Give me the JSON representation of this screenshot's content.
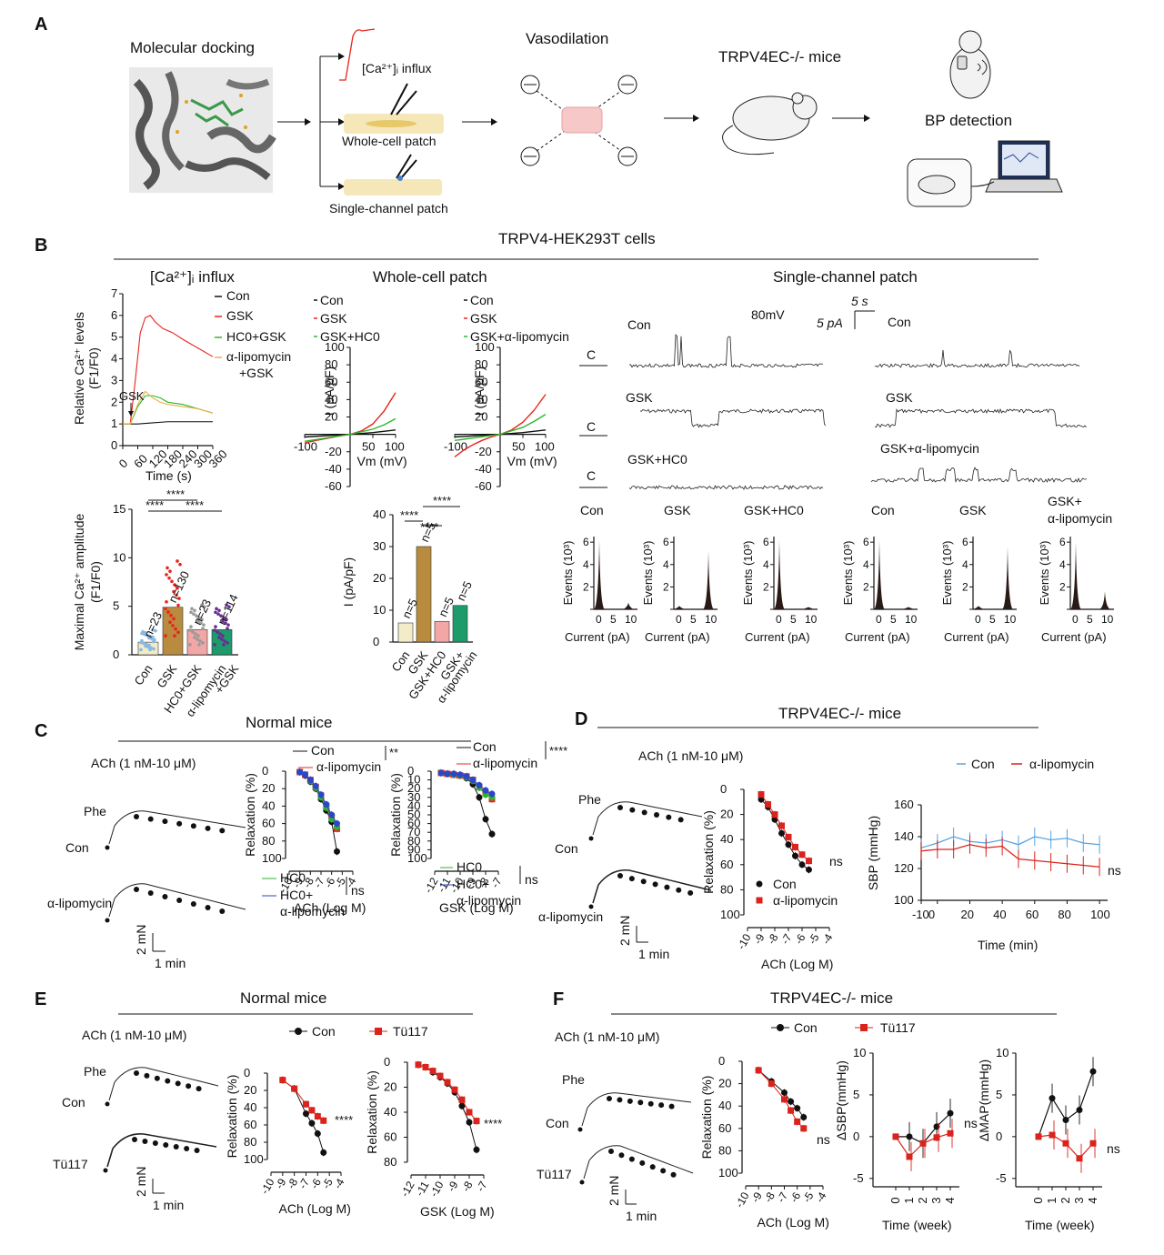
{
  "colors": {
    "con": "#111111",
    "gsk": "#e8241c",
    "hc0": "#2db62d",
    "alipo": "#e8b34a",
    "blue": "#2947c8",
    "red": "#d9231c",
    "lightblue": "#5aa3e0",
    "bar_con": "#f3ecc9",
    "bar_gsk": "#b98b3f",
    "bar_hc0": "#f3a6a6",
    "bar_alipo": "#1e9b6b"
  },
  "panelA": {
    "letter": "A",
    "docking": "Molecular docking",
    "ca_influx": "[Ca²⁺]ᵢ influx",
    "whole_cell": "Whole-cell patch",
    "single_channel": "Single-channel patch",
    "vasodilation": "Vasodilation",
    "ko_mice": "TRPV4EC-/- mice",
    "bp": "BP detection"
  },
  "panelB": {
    "letter": "B",
    "header": "TRPV4-HEK293T cells",
    "ca_title": "[Ca²⁺]ᵢ  influx",
    "wc_title": "Whole-cell patch",
    "sc_title": "Single-channel patch",
    "sc_voltage": "80mV",
    "sc_scale_t": "5 s",
    "sc_scale_i": "5 pA",
    "trace_labels_left": [
      "Con",
      "GSK",
      "GSK+HC0"
    ],
    "trace_labels_right": [
      "Con",
      "GSK",
      "GSK+α-lipomycin"
    ],
    "closed": "C",
    "hist_titles": [
      "Con",
      "GSK",
      "GSK+HC0",
      "Con",
      "GSK",
      "GSK+ α-lipomycin"
    ],
    "hist_ylabel": "Events (10³)",
    "hist_xlabel": "Current (pA)",
    "sig": "****"
  },
  "panelC": {
    "letter": "C",
    "header": "Normal mice",
    "ach": "ACh (1 nM-10 μM)",
    "phe": "Phe",
    "con": "Con",
    "alipo": "α-lipomycin",
    "scale_v": "2 mN",
    "scale_h": "1 min",
    "sig1": "**",
    "sig2": "****",
    "ns": "ns"
  },
  "panelD": {
    "letter": "D",
    "header": "TRPV4EC-/- mice",
    "ach": "ACh (1 nM-10 μM)",
    "phe": "Phe",
    "con": "Con",
    "alipo": "α-lipomycin",
    "scale_v": "2 mN",
    "scale_h": "1 min",
    "ns": "ns"
  },
  "panelE": {
    "letter": "E",
    "header": "Normal mice",
    "ach": "ACh (1 nM-10 μM)",
    "phe": "Phe",
    "con": "Con",
    "tu": "Tü117",
    "scale_v": "2 mN",
    "scale_h": "1 min",
    "sig": "****"
  },
  "panelF": {
    "letter": "F",
    "header": "TRPV4EC-/- mice",
    "ach": "ACh (1 nM-10 μM)",
    "phe": "Phe",
    "con": "Con",
    "tu": "Tü117",
    "scale_v": "2 mN",
    "scale_h": "1 min",
    "ns": "ns"
  },
  "chart_data": [
    {
      "id": "ca_influx",
      "type": "line",
      "xlabel": "Time (s)",
      "ylabel": "Relative Ca²⁺ levels (F1/F0)",
      "xlim": [
        0,
        360
      ],
      "ylim": [
        0,
        7
      ],
      "xticks": [
        0,
        60,
        120,
        180,
        240,
        300,
        360
      ],
      "yticks": [
        0,
        1,
        2,
        3,
        4,
        5,
        6,
        7
      ],
      "annotation": "GSK",
      "series": [
        {
          "name": "Con",
          "x": [
            0,
            30,
            60,
            120,
            180,
            240,
            300,
            360
          ],
          "y": [
            1,
            1,
            1,
            1.05,
            1.1,
            1.1,
            1.1,
            1.1
          ]
        },
        {
          "name": "GSK",
          "x": [
            0,
            30,
            50,
            70,
            90,
            110,
            130,
            160,
            200,
            240,
            300,
            360
          ],
          "y": [
            1,
            1,
            3,
            5.2,
            5.9,
            6.0,
            5.7,
            5.4,
            5.2,
            4.9,
            4.5,
            4.1
          ]
        },
        {
          "name": "HC0+GSK",
          "x": [
            0,
            30,
            60,
            90,
            120,
            150,
            180,
            240,
            300,
            360
          ],
          "y": [
            1,
            1,
            1.8,
            2.3,
            2.3,
            2.2,
            2.0,
            1.9,
            1.7,
            1.5
          ]
        },
        {
          "name": "α-lipomycin +GSK",
          "x": [
            0,
            30,
            60,
            90,
            120,
            150,
            180,
            240,
            300,
            360
          ],
          "y": [
            1,
            1,
            1.9,
            2.5,
            2.2,
            2.0,
            1.9,
            1.8,
            1.7,
            1.5
          ]
        }
      ]
    },
    {
      "id": "ca_max",
      "type": "bar",
      "ylabel": "Maximal Ca²⁺ amplitude (F1/F0)",
      "ylim": [
        0,
        15
      ],
      "yticks": [
        0,
        5,
        10,
        15
      ],
      "categories": [
        "Con",
        "GSK",
        "HC0+GSK",
        "α-lipomycin +GSK"
      ],
      "values": [
        1.3,
        4.9,
        2.6,
        2.6
      ],
      "n": [
        "n=23",
        "n=130",
        "n=23",
        "n=114"
      ],
      "significance": [
        "****",
        "****",
        "****"
      ]
    },
    {
      "id": "iv_hc0",
      "type": "line",
      "xlabel": "Vm (mV)",
      "ylabel": "I (pA/pF)",
      "xlim": [
        -100,
        100
      ],
      "ylim": [
        -60,
        100
      ],
      "xticks": [
        -100,
        50,
        100
      ],
      "yticks": [
        -60,
        -40,
        -20,
        20,
        40,
        60,
        80,
        100
      ],
      "series": [
        {
          "name": "Con",
          "x": [
            -100,
            -50,
            0,
            50,
            100
          ],
          "y": [
            -3,
            -1.5,
            0,
            2,
            5
          ]
        },
        {
          "name": "GSK",
          "x": [
            -100,
            -75,
            -50,
            -25,
            0,
            25,
            50,
            75,
            100
          ],
          "y": [
            -10,
            -7,
            -4.5,
            -2,
            0,
            4,
            12,
            27,
            48
          ]
        },
        {
          "name": "GSK+HC0",
          "x": [
            -100,
            -50,
            0,
            50,
            75,
            100
          ],
          "y": [
            -8,
            -4,
            0,
            6,
            11,
            18
          ]
        }
      ]
    },
    {
      "id": "iv_alipo",
      "type": "line",
      "xlabel": "Vm (mV)",
      "ylabel": "I (pA/pF)",
      "xlim": [
        -100,
        100
      ],
      "ylim": [
        -60,
        100
      ],
      "xticks": [
        -100,
        50,
        100
      ],
      "yticks": [
        -60,
        -40,
        -20,
        20,
        40,
        60,
        80,
        100
      ],
      "series": [
        {
          "name": "Con",
          "x": [
            -100,
            -50,
            0,
            50,
            100
          ],
          "y": [
            -3,
            -1.5,
            0,
            2,
            5
          ]
        },
        {
          "name": "GSK",
          "x": [
            -100,
            -80,
            -60,
            -40,
            -20,
            0,
            25,
            50,
            75,
            100
          ],
          "y": [
            -26,
            -18,
            -12,
            -7,
            -3,
            0,
            5,
            14,
            28,
            46
          ]
        },
        {
          "name": "GSK+α-lipomycin",
          "x": [
            -100,
            -50,
            0,
            50,
            75,
            100
          ],
          "y": [
            -7,
            -3.5,
            0,
            8,
            15,
            23
          ]
        }
      ]
    },
    {
      "id": "wc_bar",
      "type": "bar",
      "ylabel": "I (pA/pF)",
      "ylim": [
        0,
        40
      ],
      "yticks": [
        0,
        10,
        20,
        30,
        40
      ],
      "categories": [
        "Con",
        "GSK",
        "GSK+HC0",
        "GSK+ α-lipomycin"
      ],
      "values": [
        6,
        30,
        6.5,
        11.5
      ],
      "n": [
        "n=5",
        "n=5",
        "n=5",
        "n=5"
      ],
      "significance": [
        "****",
        "****",
        "****"
      ]
    },
    {
      "id": "sc_hist",
      "type": "bar",
      "xlabel": "Current (pA)",
      "ylabel": "Events (10³)",
      "xticks": [
        0,
        5,
        10
      ],
      "yticks": [
        0,
        2,
        4,
        6
      ],
      "series": [
        {
          "name": "Con",
          "peaks": [
            [
              0,
              6.2
            ],
            [
              10,
              0.6
            ]
          ]
        },
        {
          "name": "GSK",
          "peaks": [
            [
              0,
              0.3
            ],
            [
              10,
              5.2
            ]
          ]
        },
        {
          "name": "GSK+HC0",
          "peaks": [
            [
              0,
              6.2
            ],
            [
              10,
              0.2
            ]
          ]
        },
        {
          "name": "Con",
          "peaks": [
            [
              0,
              6.2
            ],
            [
              10,
              0.2
            ]
          ]
        },
        {
          "name": "GSK",
          "peaks": [
            [
              0,
              0.3
            ],
            [
              10,
              5.6
            ]
          ]
        },
        {
          "name": "GSK+ α-lipomycin",
          "peaks": [
            [
              0,
              6.0
            ],
            [
              10,
              1.6
            ]
          ]
        }
      ]
    },
    {
      "id": "c_ach",
      "type": "line",
      "xlabel": "ACh (Log M)",
      "ylabel": "Relaxation (%)",
      "ylim": [
        0,
        100
      ],
      "xticks": [
        "-10",
        "-9",
        "-8",
        "-7",
        "-6",
        "-5",
        "-4"
      ],
      "yticks": [
        0,
        20,
        40,
        60,
        80,
        100
      ],
      "x": [
        -9,
        -8.5,
        -8,
        -7.5,
        -7,
        -6.5,
        -6,
        -5.5
      ],
      "series": [
        {
          "name": "Con",
          "values": [
            1,
            5,
            12,
            20,
            32,
            45,
            58,
            92
          ]
        },
        {
          "name": "α-lipomycin",
          "values": [
            1,
            4,
            10,
            18,
            28,
            40,
            52,
            66
          ]
        },
        {
          "name": "HC0",
          "values": [
            1,
            4,
            11,
            19,
            30,
            42,
            55,
            64
          ]
        },
        {
          "name": "HC0+ α-lipomycin",
          "values": [
            1,
            4,
            10,
            17,
            27,
            38,
            50,
            60
          ]
        }
      ],
      "significance": [
        "**",
        "ns"
      ]
    },
    {
      "id": "c_gsk",
      "type": "line",
      "xlabel": "GSK (Log M)",
      "ylabel": "Relaxation (%)",
      "ylim": [
        0,
        100
      ],
      "xticks": [
        "-12",
        "-11",
        "-10",
        "-9",
        "-8",
        "-7"
      ],
      "yticks": [
        0,
        10,
        20,
        30,
        40,
        50,
        60,
        70,
        80,
        90,
        100
      ],
      "x": [
        -11.5,
        -11,
        -10.5,
        -10,
        -9.5,
        -9,
        -8.5,
        -8,
        -7.5
      ],
      "series": [
        {
          "name": "Con",
          "values": [
            2,
            3,
            4,
            5,
            8,
            15,
            30,
            55,
            72
          ]
        },
        {
          "name": "α-lipomycin",
          "values": [
            2,
            3,
            4,
            5,
            6,
            10,
            18,
            25,
            32
          ]
        },
        {
          "name": "HC0",
          "values": [
            2,
            3,
            4,
            5,
            7,
            11,
            19,
            27,
            30
          ]
        },
        {
          "name": "HC0+ α-lipomycin",
          "values": [
            2,
            3,
            3,
            4,
            6,
            10,
            16,
            22,
            26
          ]
        }
      ],
      "significance": [
        "****",
        "ns"
      ]
    },
    {
      "id": "d_ach",
      "type": "line",
      "xlabel": "ACh (Log M)",
      "ylabel": "Relaxation (%)",
      "ylim": [
        0,
        100
      ],
      "xticks": [
        "-10",
        "-9",
        "-8",
        "-7",
        "-6",
        "-5",
        "-4"
      ],
      "yticks": [
        0,
        20,
        40,
        60,
        80,
        100
      ],
      "x": [
        -9,
        -8.5,
        -8,
        -7.5,
        -7,
        -6.5,
        -6,
        -5.5
      ],
      "series": [
        {
          "name": "Con",
          "values": [
            8,
            14,
            24,
            35,
            44,
            53,
            60,
            64
          ]
        },
        {
          "name": "α-lipomycin",
          "values": [
            4,
            12,
            20,
            29,
            38,
            46,
            52,
            57
          ]
        }
      ],
      "significance": [
        "ns"
      ]
    },
    {
      "id": "d_sbp",
      "type": "line",
      "xlabel": "Time (min)",
      "ylabel": "SBP (mmHg)",
      "xlim": [
        -10,
        105
      ],
      "ylim": [
        100,
        160
      ],
      "xticks": [
        -10,
        0,
        20,
        40,
        60,
        80,
        100
      ],
      "yticks": [
        100,
        120,
        140,
        160
      ],
      "x": [
        -10,
        0,
        10,
        20,
        30,
        40,
        50,
        60,
        70,
        80,
        90,
        100
      ],
      "series": [
        {
          "name": "Con",
          "values": [
            133,
            136,
            140,
            137,
            136,
            138,
            135,
            140,
            138,
            139,
            136,
            135
          ]
        },
        {
          "name": "α-lipomycin",
          "values": [
            131,
            132,
            132,
            135,
            133,
            134,
            126,
            125,
            124,
            123,
            122,
            121
          ]
        }
      ],
      "significance": [
        "ns"
      ]
    },
    {
      "id": "e_ach",
      "type": "line",
      "xlabel": "ACh (Log M)",
      "ylabel": "Relaxation (%)",
      "ylim": [
        0,
        100
      ],
      "xticks": [
        "-10",
        "-9",
        "-8",
        "-7",
        "-6",
        "-5",
        "-4"
      ],
      "yticks": [
        0,
        20,
        40,
        60,
        80,
        100
      ],
      "x": [
        -9,
        -8,
        -7,
        -6.5,
        -6,
        -5.5
      ],
      "series": [
        {
          "name": "Con",
          "values": [
            8,
            18,
            47,
            58,
            70,
            92
          ]
        },
        {
          "name": "Tü117",
          "values": [
            8,
            18,
            36,
            43,
            50,
            55
          ]
        }
      ],
      "significance": [
        "****"
      ]
    },
    {
      "id": "e_gsk",
      "type": "line",
      "xlabel": "GSK (Log M)",
      "ylabel": "Relaxation (%)",
      "ylim": [
        0,
        80
      ],
      "xticks": [
        "-12",
        "-11",
        "-10",
        "-9",
        "-8",
        "-7"
      ],
      "yticks": [
        0,
        20,
        40,
        60,
        80
      ],
      "x": [
        -11.5,
        -11,
        -10.5,
        -10,
        -9.5,
        -9,
        -8.5,
        -8,
        -7.5
      ],
      "series": [
        {
          "name": "Con",
          "values": [
            2,
            4,
            8,
            12,
            17,
            24,
            35,
            48,
            70
          ]
        },
        {
          "name": "Tü117",
          "values": [
            2,
            4,
            7,
            11,
            16,
            22,
            30,
            40,
            47
          ]
        }
      ],
      "significance": [
        "****"
      ]
    },
    {
      "id": "f_ach",
      "type": "line",
      "xlabel": "ACh (Log M)",
      "ylabel": "Relaxation (%)",
      "ylim": [
        0,
        100
      ],
      "xticks": [
        "-10",
        "-9",
        "-8",
        "-7",
        "-6",
        "-5",
        "-4"
      ],
      "yticks": [
        0,
        20,
        40,
        60,
        80,
        100
      ],
      "x": [
        -9,
        -8,
        -7,
        -6.5,
        -6,
        -5.5
      ],
      "series": [
        {
          "name": "Con",
          "values": [
            8,
            18,
            28,
            36,
            42,
            50
          ]
        },
        {
          "name": "Tü117",
          "values": [
            8,
            20,
            34,
            44,
            54,
            60
          ]
        }
      ],
      "significance": [
        "ns"
      ]
    },
    {
      "id": "f_sbp",
      "type": "line",
      "xlabel": "Time (week)",
      "ylabel": "ΔSBP(mmHg)",
      "xlim": [
        0,
        4
      ],
      "ylim": [
        -6,
        10
      ],
      "xticks": [
        0,
        1,
        2,
        3,
        4
      ],
      "yticks": [
        -5,
        0,
        5,
        10
      ],
      "x": [
        0,
        1,
        2,
        3,
        4
      ],
      "series": [
        {
          "name": "Con",
          "values": [
            0,
            0,
            -0.8,
            1.2,
            2.8
          ]
        },
        {
          "name": "Tü117",
          "values": [
            0,
            -2.4,
            -0.8,
            -0.1,
            0.4
          ]
        }
      ],
      "significance": [
        "ns"
      ]
    },
    {
      "id": "f_map",
      "type": "line",
      "xlabel": "Time (week)",
      "ylabel": "ΔMAP(mmHg)",
      "xlim": [
        0,
        4
      ],
      "ylim": [
        -6,
        10
      ],
      "xticks": [
        0,
        1,
        2,
        3,
        4
      ],
      "yticks": [
        -5,
        0,
        5,
        10
      ],
      "x": [
        0,
        1,
        2,
        3,
        4
      ],
      "series": [
        {
          "name": "Con",
          "values": [
            0,
            4.6,
            2.0,
            3.2,
            7.8
          ]
        },
        {
          "name": "Tü117",
          "values": [
            0,
            0.2,
            -0.8,
            -2.6,
            -0.8
          ]
        }
      ],
      "significance": [
        "ns"
      ]
    }
  ]
}
